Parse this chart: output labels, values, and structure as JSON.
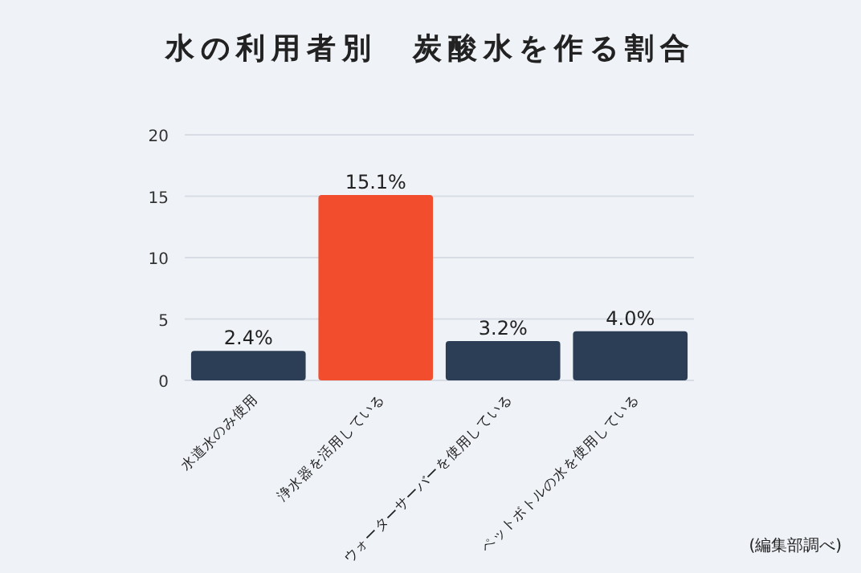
{
  "chart_data": {
    "type": "bar",
    "title": "水の利用者別　炭酸水を作る割合",
    "categories": [
      "水道水のみ使用",
      "浄水器を活用している",
      "ウォーターサーバーを使用している",
      "ペットボトルの水を使用している"
    ],
    "values": [
      2.4,
      15.1,
      3.2,
      4.0
    ],
    "colors": [
      "#2c3e55",
      "#f24e2e",
      "#2c3e55",
      "#2c3e55"
    ],
    "value_labels": [
      "2.4%",
      "15.1%",
      "3.2%",
      "4.0%"
    ],
    "ylim": [
      0,
      20
    ],
    "yticks": [
      0,
      5,
      10,
      15,
      20
    ],
    "grid": "y",
    "annotations": [
      "(編集部調べ)"
    ]
  }
}
